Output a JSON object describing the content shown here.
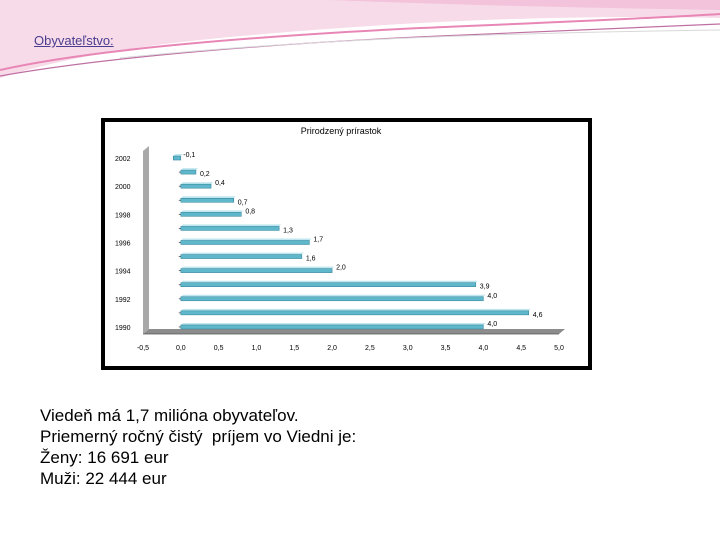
{
  "slide": {
    "heading": "Obyvateľstvo:",
    "lines": [
      "Viedeň má 1,7 milióna obyvateľov.",
      "Priemerný ročný čistý  príjem vo Viedni je:",
      "Ženy: 16 691 eur",
      "Muži: 22 444 eur"
    ]
  },
  "chart_data": {
    "type": "bar",
    "orientation": "horizontal",
    "title": "Prirodzený prírastok",
    "categories": [
      "2002",
      "",
      "2000",
      "",
      "1998",
      "",
      "1996",
      "",
      "1994",
      "",
      "1992",
      "",
      "1990"
    ],
    "values": [
      -0.1,
      0.2,
      0.4,
      0.7,
      0.8,
      1.3,
      1.7,
      1.6,
      2.0,
      3.9,
      4.0,
      4.6,
      4.0
    ],
    "data_labels": [
      "-0,1",
      "0,2",
      "0,4",
      "0,7",
      "0,8",
      "1,3",
      "1,7",
      "1,6",
      "2,0",
      "3,9",
      "4,0",
      "4,6",
      "4,0"
    ],
    "xlim": [
      -0.5,
      5.0
    ],
    "x_ticks": [
      "-0,5",
      "0,0",
      "0,5",
      "1,0",
      "1,5",
      "2,0",
      "2,5",
      "3,0",
      "3,5",
      "4,0",
      "4,5",
      "5,0"
    ],
    "xlabel": "",
    "ylabel": "",
    "legend": "none",
    "grid": false,
    "bar_color": "#5fb7cc"
  }
}
